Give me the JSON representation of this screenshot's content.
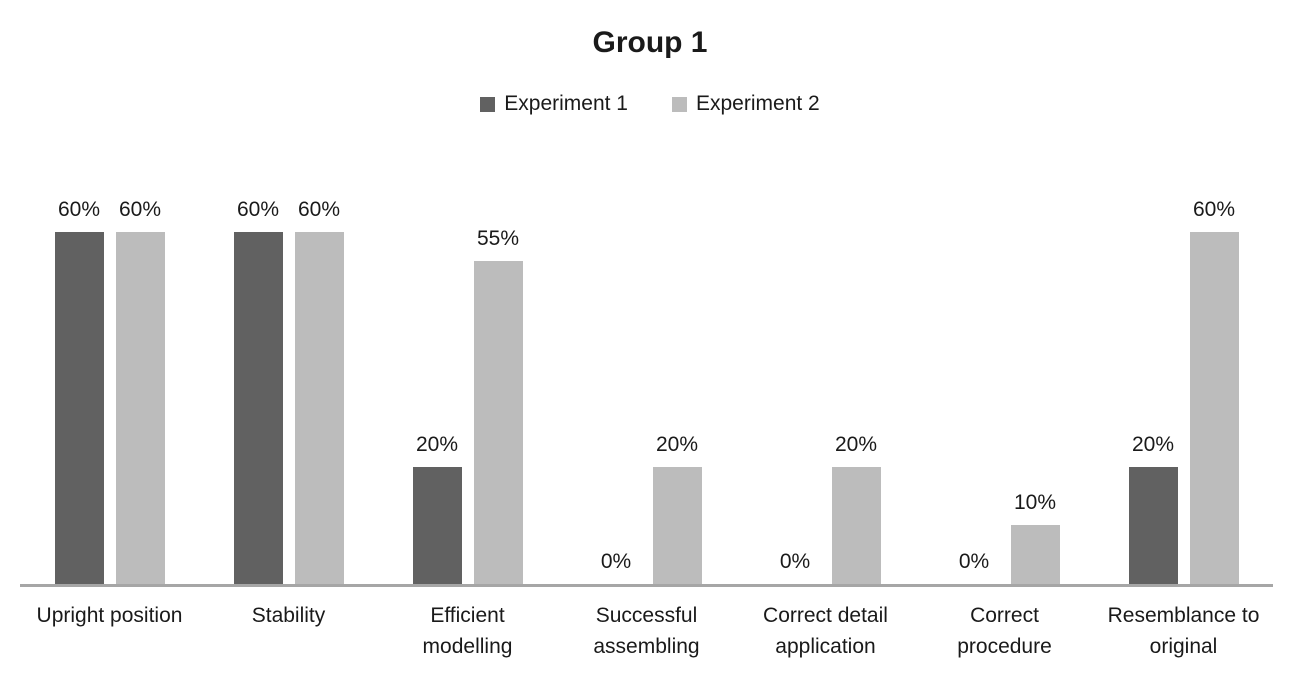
{
  "chart_data": {
    "type": "bar",
    "title": "Group 1",
    "categories": [
      "Upright position",
      "Stability",
      "Efficient modelling",
      "Successful assembling",
      "Correct detail application",
      "Correct procedure",
      "Resemblance to original"
    ],
    "series": [
      {
        "name": "Experiment 1",
        "color": "#616161",
        "values": [
          60,
          60,
          20,
          0,
          0,
          0,
          20
        ],
        "value_labels": [
          "60%",
          "60%",
          "20%",
          "0%",
          "0%",
          "0%",
          "20%"
        ]
      },
      {
        "name": "Experiment 2",
        "color": "#bcbcbc",
        "values": [
          60,
          60,
          55,
          20,
          20,
          10,
          60
        ],
        "value_labels": [
          "60%",
          "60%",
          "55%",
          "20%",
          "20%",
          "10%",
          "60%"
        ]
      }
    ],
    "ylim": [
      0,
      100
    ],
    "y_axis_visible": false,
    "x_axis_visible": true,
    "grid": false,
    "data_labels": true,
    "legend_position": "top",
    "axis_line_color": "#a6a6a6",
    "text_color": "#1a1a1a"
  }
}
